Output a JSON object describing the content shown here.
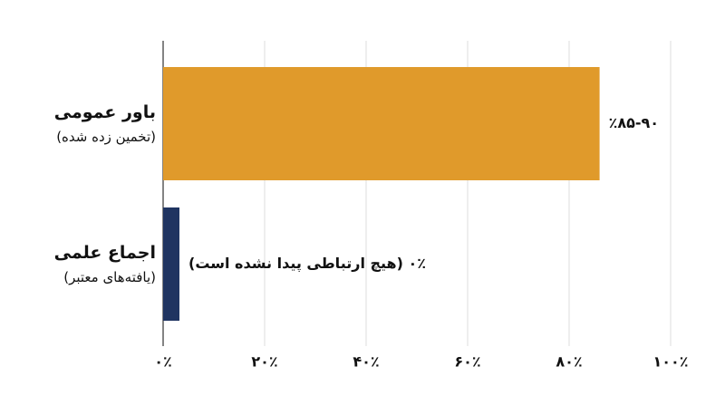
{
  "chart_data": {
    "type": "hbar",
    "categories": [
      "باور عمومی",
      "اجماع علمی"
    ],
    "category_sublabels": [
      "(تخمین زده شده)",
      "(یافته‌های معتبر)"
    ],
    "series": [
      {
        "colors": [
          "#e09a2b",
          "#1f3461"
        ],
        "values": [
          86,
          0
        ],
        "value_labels": [
          "٪۸۵-۹۰",
          "۰٪ (هیچ ارتباطی پیدا نشده است)"
        ]
      }
    ],
    "xlim": [
      0,
      100
    ],
    "xticks": [
      {
        "value": 0,
        "label": "۰٪"
      },
      {
        "value": 20,
        "label": "۲۰٪"
      },
      {
        "value": 40,
        "label": "۴۰٪"
      },
      {
        "value": 60,
        "label": "۶۰٪"
      },
      {
        "value": 80,
        "label": "۸۰٪"
      },
      {
        "value": 100,
        "label": "۱۰۰٪"
      }
    ],
    "grid": true
  }
}
